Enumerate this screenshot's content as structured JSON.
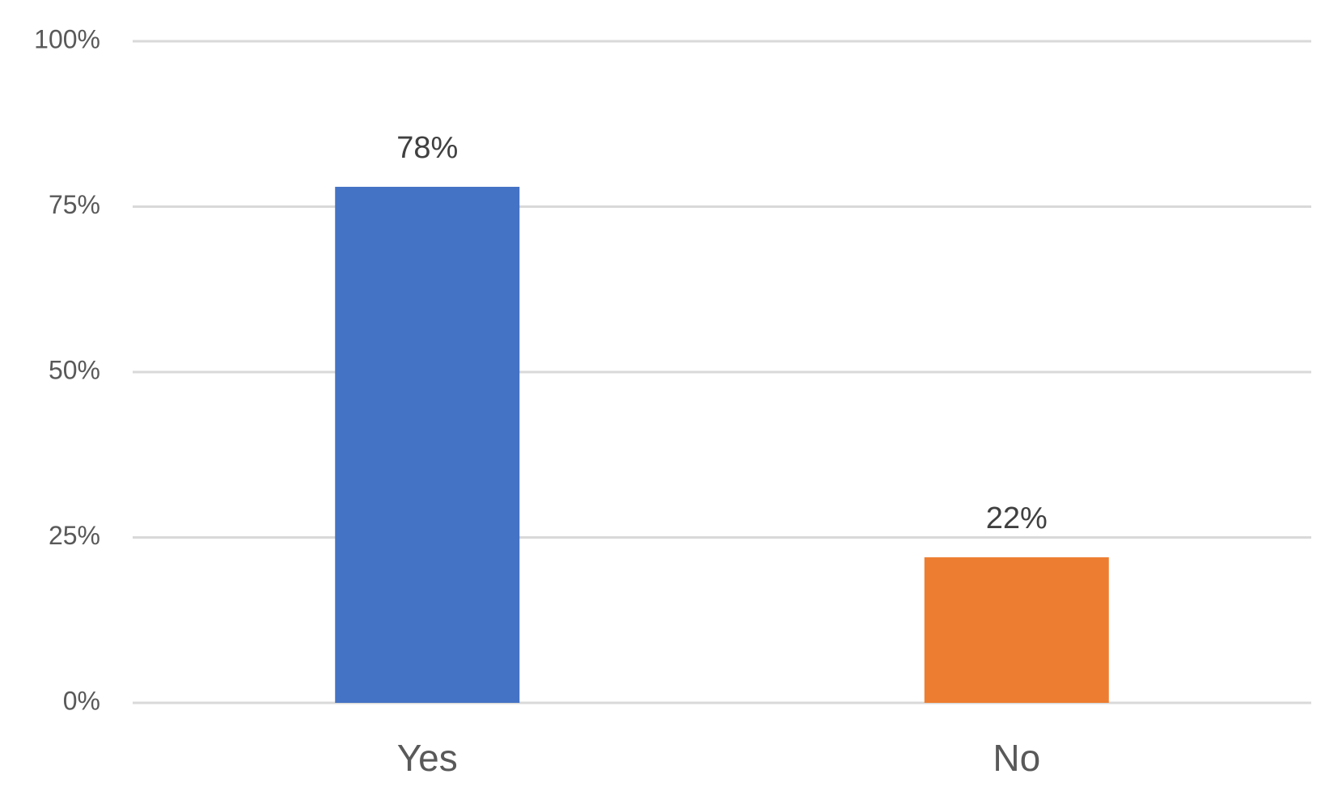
{
  "chart_data": {
    "type": "bar",
    "categories": [
      "Yes",
      "No"
    ],
    "values": [
      78,
      22
    ],
    "value_labels": [
      "78%",
      "22%"
    ],
    "colors": [
      "#4472c4",
      "#ed7d31"
    ],
    "ylim": [
      0,
      100
    ],
    "yticks": [
      {
        "value": 0,
        "label": "0%"
      },
      {
        "value": 25,
        "label": "25%"
      },
      {
        "value": 50,
        "label": "50%"
      },
      {
        "value": 75,
        "label": "75%"
      },
      {
        "value": 100,
        "label": "100%"
      }
    ],
    "grid": true
  }
}
